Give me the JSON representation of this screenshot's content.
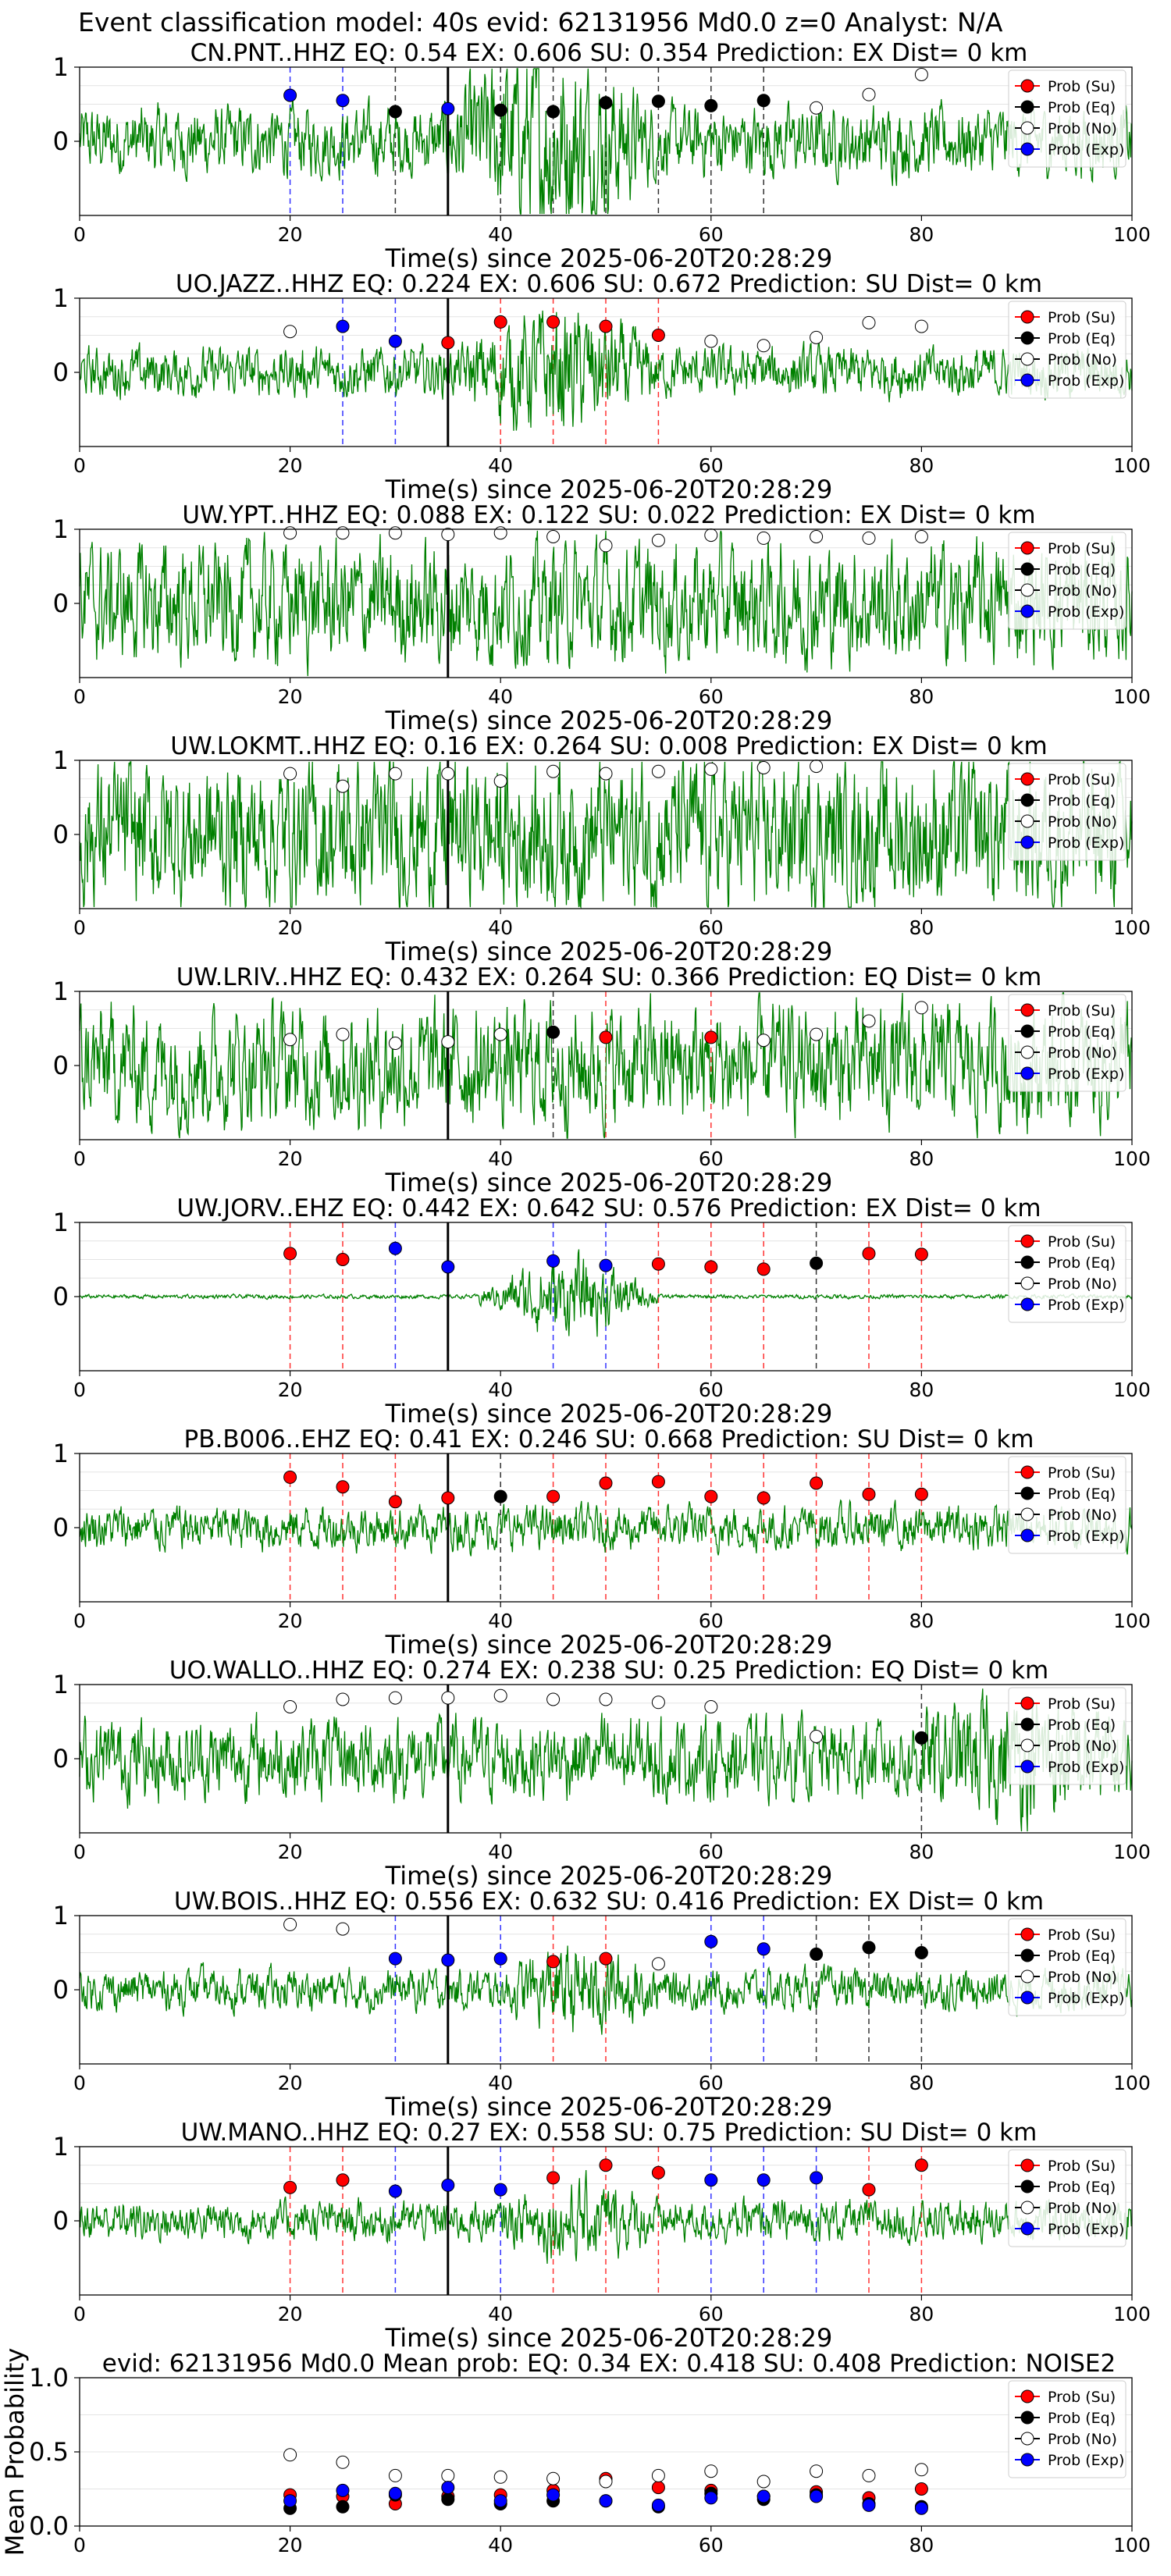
{
  "suptitle": "Event classification model: 40s evid: 62131956 Md0.0 z=0 Analyst: N/A",
  "legend_labels": [
    "Prob (Su)",
    "Prob (Eq)",
    "Prob (No)",
    "Prob (Exp)"
  ],
  "colors": {
    "su": "#ff0000",
    "eq": "#000000",
    "no": "#ffffff",
    "exp": "#0000ff",
    "trace": "#008000"
  },
  "xlabel": "Time(s) since 2025-06-20T20:28:29",
  "x_ticks": [
    "0",
    "20",
    "40",
    "60",
    "80",
    "100"
  ],
  "trace_y_ticks": [
    "1",
    "0"
  ],
  "chart_data": [
    {
      "type": "scatter",
      "title": "CN.PNT..HHZ   EQ: 0.54   EX: 0.606   SU: 0.354   Prediction: EX    Dist= 0 km",
      "xlim": [
        0,
        100
      ],
      "ylim": [
        -1,
        1
      ],
      "xlabel": "Time(s) since 2025-06-20T20:28:29",
      "trace_amp": 0.35,
      "trace_burst": [
        34,
        55,
        2.8
      ],
      "points": [
        [
          20,
          0.62,
          "exp"
        ],
        [
          25,
          0.55,
          "exp"
        ],
        [
          30,
          0.4,
          "eq"
        ],
        [
          35,
          0.44,
          "exp"
        ],
        [
          40,
          0.42,
          "eq"
        ],
        [
          45,
          0.4,
          "eq"
        ],
        [
          50,
          0.52,
          "eq"
        ],
        [
          55,
          0.54,
          "eq"
        ],
        [
          60,
          0.48,
          "eq"
        ],
        [
          65,
          0.55,
          "eq"
        ],
        [
          70,
          0.45,
          "no"
        ],
        [
          75,
          0.63,
          "no"
        ],
        [
          80,
          0.9,
          "no"
        ]
      ]
    },
    {
      "type": "scatter",
      "title": "UO.JAZZ..HHZ   EQ: 0.224   EX: 0.606   SU: 0.672   Prediction: SU    Dist= 0 km",
      "xlim": [
        0,
        100
      ],
      "ylim": [
        -1,
        1
      ],
      "xlabel": "Time(s) since 2025-06-20T20:28:29",
      "trace_amp": 0.25,
      "trace_burst": [
        36,
        55,
        2.6
      ],
      "points": [
        [
          20,
          0.55,
          "no"
        ],
        [
          25,
          0.62,
          "exp"
        ],
        [
          30,
          0.42,
          "exp"
        ],
        [
          35,
          0.4,
          "su"
        ],
        [
          40,
          0.68,
          "su"
        ],
        [
          45,
          0.68,
          "su"
        ],
        [
          50,
          0.62,
          "su"
        ],
        [
          55,
          0.5,
          "su"
        ],
        [
          60,
          0.42,
          "no"
        ],
        [
          65,
          0.36,
          "no"
        ],
        [
          70,
          0.47,
          "no"
        ],
        [
          75,
          0.67,
          "no"
        ],
        [
          80,
          0.62,
          "no"
        ]
      ]
    },
    {
      "type": "scatter",
      "title": "UW.YPT..HHZ   EQ: 0.088   EX: 0.122   SU: 0.022   Prediction: EX    Dist= 0 km",
      "xlim": [
        0,
        100
      ],
      "ylim": [
        -1,
        1
      ],
      "xlabel": "Time(s) since 2025-06-20T20:28:29",
      "trace_amp": 0.6,
      "trace_burst": null,
      "points": [
        [
          20,
          0.95,
          "no"
        ],
        [
          25,
          0.95,
          "no"
        ],
        [
          30,
          0.95,
          "no"
        ],
        [
          35,
          0.93,
          "no"
        ],
        [
          40,
          0.95,
          "no"
        ],
        [
          45,
          0.9,
          "no"
        ],
        [
          50,
          0.78,
          "no"
        ],
        [
          55,
          0.85,
          "no"
        ],
        [
          60,
          0.92,
          "no"
        ],
        [
          65,
          0.88,
          "no"
        ],
        [
          70,
          0.9,
          "no"
        ],
        [
          75,
          0.88,
          "no"
        ],
        [
          80,
          0.9,
          "no"
        ]
      ]
    },
    {
      "type": "scatter",
      "title": "UW.LOKMT..HHZ   EQ: 0.16   EX: 0.264   SU: 0.008   Prediction: EX    Dist= 0 km",
      "xlim": [
        0,
        100
      ],
      "ylim": [
        -1,
        1
      ],
      "xlabel": "Time(s) since 2025-06-20T20:28:29",
      "trace_amp": 0.75,
      "trace_burst": null,
      "points": [
        [
          20,
          0.82,
          "no"
        ],
        [
          25,
          0.65,
          "no"
        ],
        [
          30,
          0.82,
          "no"
        ],
        [
          35,
          0.82,
          "no"
        ],
        [
          40,
          0.72,
          "no"
        ],
        [
          45,
          0.85,
          "no"
        ],
        [
          50,
          0.82,
          "no"
        ],
        [
          55,
          0.85,
          "no"
        ],
        [
          60,
          0.88,
          "no"
        ],
        [
          65,
          0.9,
          "no"
        ],
        [
          70,
          0.92,
          "no"
        ]
      ]
    },
    {
      "type": "scatter",
      "title": "UW.LRIV..HHZ   EQ: 0.432   EX: 0.264   SU: 0.366   Prediction: EQ    Dist= 0 km",
      "xlim": [
        0,
        100
      ],
      "ylim": [
        -1,
        1
      ],
      "xlabel": "Time(s) since 2025-06-20T20:28:29",
      "trace_amp": 0.6,
      "trace_burst": null,
      "points": [
        [
          20,
          0.35,
          "no"
        ],
        [
          25,
          0.42,
          "no"
        ],
        [
          30,
          0.3,
          "no"
        ],
        [
          35,
          0.32,
          "no"
        ],
        [
          40,
          0.42,
          "no"
        ],
        [
          45,
          0.45,
          "eq"
        ],
        [
          50,
          0.38,
          "su"
        ],
        [
          60,
          0.38,
          "su"
        ],
        [
          65,
          0.34,
          "no"
        ],
        [
          70,
          0.42,
          "no"
        ],
        [
          75,
          0.6,
          "no"
        ],
        [
          80,
          0.78,
          "no"
        ]
      ]
    },
    {
      "type": "scatter",
      "title": "UW.JORV..EHZ   EQ: 0.442   EX: 0.642   SU: 0.576   Prediction: EX    Dist= 0 km",
      "xlim": [
        0,
        100
      ],
      "ylim": [
        -1,
        1
      ],
      "xlabel": "Time(s) since 2025-06-20T20:28:29",
      "trace_amp": 0.02,
      "trace_burst": [
        38,
        55,
        20
      ],
      "points": [
        [
          20,
          0.58,
          "su"
        ],
        [
          25,
          0.5,
          "su"
        ],
        [
          30,
          0.65,
          "exp"
        ],
        [
          35,
          0.4,
          "exp"
        ],
        [
          45,
          0.48,
          "exp"
        ],
        [
          50,
          0.42,
          "exp"
        ],
        [
          55,
          0.44,
          "su"
        ],
        [
          60,
          0.4,
          "su"
        ],
        [
          65,
          0.37,
          "su"
        ],
        [
          70,
          0.45,
          "eq"
        ],
        [
          75,
          0.58,
          "su"
        ],
        [
          80,
          0.57,
          "su"
        ]
      ]
    },
    {
      "type": "scatter",
      "title": "PB.B006..EHZ   EQ: 0.41   EX: 0.246   SU: 0.668   Prediction: SU    Dist= 0 km",
      "xlim": [
        0,
        100
      ],
      "ylim": [
        -1,
        1
      ],
      "xlabel": "Time(s) since 2025-06-20T20:28:29",
      "trace_amp": 0.22,
      "trace_burst": null,
      "points": [
        [
          20,
          0.68,
          "su"
        ],
        [
          25,
          0.55,
          "su"
        ],
        [
          30,
          0.35,
          "su"
        ],
        [
          35,
          0.4,
          "su"
        ],
        [
          40,
          0.42,
          "eq"
        ],
        [
          45,
          0.42,
          "su"
        ],
        [
          50,
          0.6,
          "su"
        ],
        [
          55,
          0.62,
          "su"
        ],
        [
          60,
          0.42,
          "su"
        ],
        [
          65,
          0.4,
          "su"
        ],
        [
          70,
          0.6,
          "su"
        ],
        [
          75,
          0.45,
          "su"
        ],
        [
          80,
          0.45,
          "su"
        ]
      ]
    },
    {
      "type": "scatter",
      "title": "UO.WALLO..HHZ   EQ: 0.274   EX: 0.238   SU: 0.25   Prediction: EQ    Dist= 0 km",
      "xlim": [
        0,
        100
      ],
      "ylim": [
        -1,
        1
      ],
      "xlabel": "Time(s) since 2025-06-20T20:28:29",
      "trace_amp": 0.4,
      "trace_burst": [
        78,
        100,
        1.6
      ],
      "points": [
        [
          20,
          0.7,
          "no"
        ],
        [
          25,
          0.8,
          "no"
        ],
        [
          30,
          0.82,
          "no"
        ],
        [
          35,
          0.82,
          "no"
        ],
        [
          40,
          0.85,
          "no"
        ],
        [
          45,
          0.8,
          "no"
        ],
        [
          50,
          0.8,
          "no"
        ],
        [
          55,
          0.76,
          "no"
        ],
        [
          60,
          0.7,
          "no"
        ],
        [
          70,
          0.3,
          "no"
        ],
        [
          80,
          0.28,
          "eq"
        ]
      ]
    },
    {
      "type": "scatter",
      "title": "UW.BOIS..HHZ   EQ: 0.556   EX: 0.632   SU: 0.416   Prediction: EX    Dist= 0 km",
      "xlim": [
        0,
        100
      ],
      "ylim": [
        -1,
        1
      ],
      "xlabel": "Time(s) since 2025-06-20T20:28:29",
      "trace_amp": 0.2,
      "trace_burst": [
        40,
        55,
        2.2
      ],
      "points": [
        [
          20,
          0.88,
          "no"
        ],
        [
          25,
          0.82,
          "no"
        ],
        [
          30,
          0.42,
          "exp"
        ],
        [
          35,
          0.4,
          "exp"
        ],
        [
          40,
          0.42,
          "exp"
        ],
        [
          45,
          0.38,
          "su"
        ],
        [
          50,
          0.42,
          "su"
        ],
        [
          55,
          0.35,
          "no"
        ],
        [
          60,
          0.65,
          "exp"
        ],
        [
          65,
          0.55,
          "exp"
        ],
        [
          70,
          0.48,
          "eq"
        ],
        [
          75,
          0.57,
          "eq"
        ],
        [
          80,
          0.5,
          "eq"
        ]
      ]
    },
    {
      "type": "scatter",
      "title": "UW.MANO..HHZ   EQ: 0.27   EX: 0.558   SU: 0.75   Prediction: SU    Dist= 0 km",
      "xlim": [
        0,
        100
      ],
      "ylim": [
        -1,
        1
      ],
      "xlabel": "Time(s) since 2025-06-20T20:28:29",
      "trace_amp": 0.2,
      "trace_burst": [
        40,
        55,
        2.0
      ],
      "points": [
        [
          20,
          0.45,
          "su"
        ],
        [
          25,
          0.55,
          "su"
        ],
        [
          30,
          0.4,
          "exp"
        ],
        [
          35,
          0.48,
          "exp"
        ],
        [
          40,
          0.42,
          "exp"
        ],
        [
          45,
          0.58,
          "su"
        ],
        [
          50,
          0.75,
          "su"
        ],
        [
          55,
          0.65,
          "su"
        ],
        [
          60,
          0.55,
          "exp"
        ],
        [
          65,
          0.55,
          "exp"
        ],
        [
          70,
          0.58,
          "exp"
        ],
        [
          75,
          0.42,
          "su"
        ],
        [
          80,
          0.75,
          "su"
        ]
      ]
    },
    {
      "type": "scatter",
      "title": "evid: 62131956   Md0.0   Mean prob:   EQ: 0.34   EX: 0.418   SU: 0.408   Prediction: NOISE2",
      "xlim": [
        0,
        100
      ],
      "ylim": [
        0,
        1
      ],
      "ylabel": "Mean Probability",
      "y_ticks": [
        "1.0",
        "0.5",
        "0.0"
      ],
      "series": [
        {
          "name": "Prob (Su)",
          "key": "su",
          "x": [
            20,
            25,
            30,
            35,
            40,
            45,
            50,
            55,
            60,
            65,
            70,
            75,
            80
          ],
          "y": [
            0.21,
            0.2,
            0.15,
            0.2,
            0.21,
            0.24,
            0.32,
            0.26,
            0.24,
            0.2,
            0.23,
            0.19,
            0.25
          ]
        },
        {
          "name": "Prob (Eq)",
          "key": "eq",
          "x": [
            20,
            25,
            30,
            35,
            40,
            45,
            50,
            55,
            60,
            65,
            70,
            75,
            80
          ],
          "y": [
            0.12,
            0.13,
            0.21,
            0.18,
            0.15,
            0.17,
            0.17,
            0.13,
            0.22,
            0.18,
            0.21,
            0.15,
            0.13
          ]
        },
        {
          "name": "Prob (No)",
          "key": "no",
          "x": [
            20,
            25,
            30,
            35,
            40,
            45,
            50,
            55,
            60,
            65,
            70,
            75,
            80
          ],
          "y": [
            0.48,
            0.43,
            0.34,
            0.34,
            0.33,
            0.32,
            0.3,
            0.34,
            0.37,
            0.3,
            0.37,
            0.34,
            0.38
          ]
        },
        {
          "name": "Prob (Exp)",
          "key": "exp",
          "x": [
            20,
            25,
            30,
            35,
            40,
            45,
            50,
            55,
            60,
            65,
            70,
            75,
            80
          ],
          "y": [
            0.17,
            0.24,
            0.22,
            0.26,
            0.17,
            0.21,
            0.17,
            0.14,
            0.19,
            0.2,
            0.2,
            0.14,
            0.12
          ]
        }
      ]
    }
  ]
}
